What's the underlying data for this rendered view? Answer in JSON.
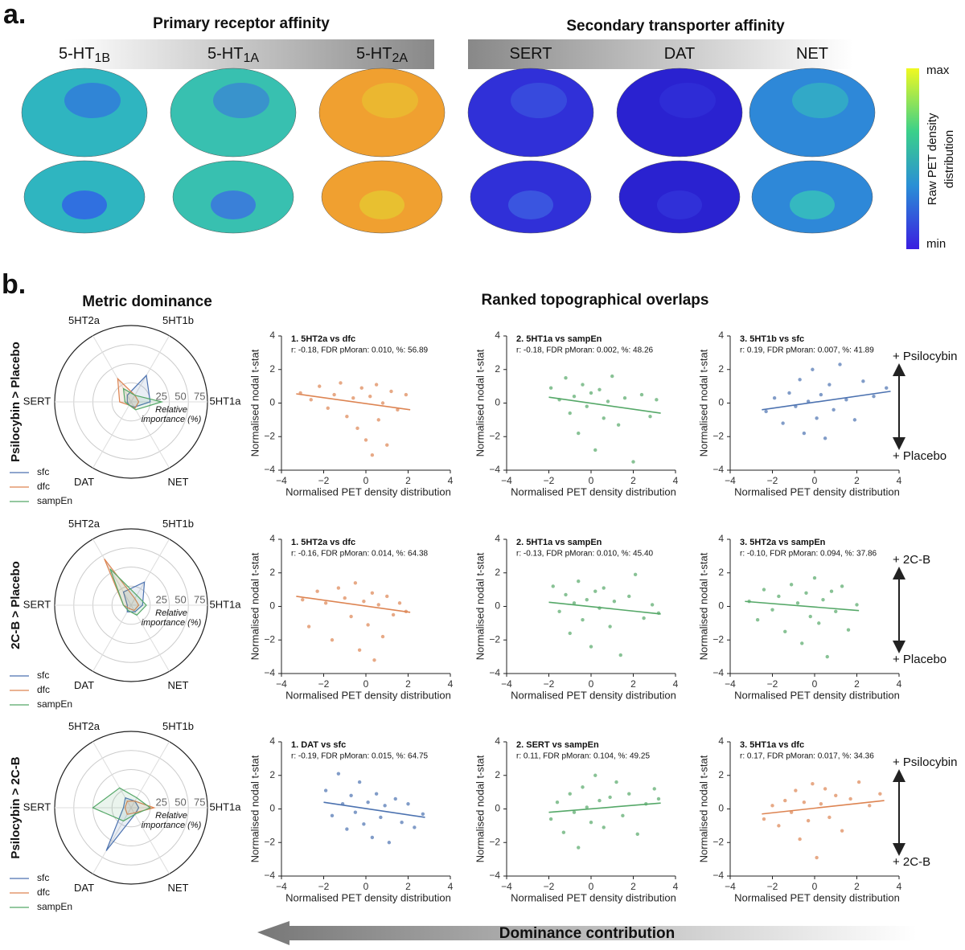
{
  "panel_a": {
    "label": "a.",
    "primary_title": "Primary receptor affinity",
    "secondary_title": "Secondary transporter affinity",
    "receptors": [
      {
        "base": "5-HT",
        "sub": "1B"
      },
      {
        "base": "5-HT",
        "sub": "1A"
      },
      {
        "base": "5-HT",
        "sub": "2A"
      },
      {
        "base": "SERT",
        "sub": ""
      },
      {
        "base": "DAT",
        "sub": ""
      },
      {
        "base": "NET",
        "sub": ""
      }
    ],
    "colorbar": {
      "max": "max",
      "min": "min",
      "label": [
        "Raw PET density",
        "distribution"
      ]
    }
  },
  "panel_b": {
    "label": "b.",
    "left_title": "Metric dominance",
    "right_title": "Ranked topographical overlaps",
    "arrow_label": "Dominance contribution",
    "contrasts": [
      {
        "top": "+ Psilocybin",
        "bottom": "+ Placebo"
      },
      {
        "top": "+ 2C-B",
        "bottom": "+ Placebo"
      },
      {
        "top": "+ Psilocybin",
        "bottom": "+ 2C-B"
      }
    ]
  },
  "chart_data": [
    {
      "type": "radar",
      "title": "Psilocybin > Placebo",
      "categories": [
        "5HT1a",
        "5HT1b",
        "5HT2a",
        "SERT",
        "DAT",
        "NET"
      ],
      "rlim": [
        0,
        100
      ],
      "rticks": [
        25,
        50,
        75
      ],
      "annotation": [
        "Relative",
        "importance (%)"
      ],
      "series": [
        {
          "name": "sfc",
          "color": "#4c72b0",
          "values": [
            25,
            40,
            10,
            5,
            5,
            8
          ]
        },
        {
          "name": "dfc",
          "color": "#dd8452",
          "values": [
            10,
            10,
            35,
            15,
            5,
            10
          ]
        },
        {
          "name": "sampEn",
          "color": "#55a868",
          "values": [
            40,
            10,
            20,
            8,
            5,
            12
          ]
        }
      ]
    },
    {
      "type": "radar",
      "title": "2C-B > Placebo",
      "categories": [
        "5HT1a",
        "5HT1b",
        "5HT2a",
        "SERT",
        "DAT",
        "NET"
      ],
      "rlim": [
        0,
        100
      ],
      "rticks": [
        25,
        50,
        75
      ],
      "annotation": [
        "Relative",
        "importance (%)"
      ],
      "series": [
        {
          "name": "sfc",
          "color": "#4c72b0",
          "values": [
            15,
            35,
            20,
            5,
            10,
            10
          ]
        },
        {
          "name": "dfc",
          "color": "#dd8452",
          "values": [
            10,
            10,
            70,
            10,
            5,
            8
          ]
        },
        {
          "name": "sampEn",
          "color": "#55a868",
          "values": [
            20,
            15,
            55,
            10,
            8,
            15
          ]
        }
      ]
    },
    {
      "type": "radar",
      "title": "Psilocybin > 2C-B",
      "categories": [
        "5HT1a",
        "5HT1b",
        "5HT2a",
        "SERT",
        "DAT",
        "NET"
      ],
      "rlim": [
        0,
        100
      ],
      "rticks": [
        25,
        50,
        75
      ],
      "annotation": [
        "Relative",
        "importance (%)"
      ],
      "series": [
        {
          "name": "sfc",
          "color": "#4c72b0",
          "values": [
            10,
            10,
            15,
            10,
            65,
            10
          ]
        },
        {
          "name": "dfc",
          "color": "#dd8452",
          "values": [
            30,
            10,
            10,
            8,
            10,
            8
          ]
        },
        {
          "name": "sampEn",
          "color": "#55a868",
          "values": [
            25,
            15,
            30,
            50,
            20,
            10
          ]
        }
      ]
    },
    {
      "type": "scatter",
      "title": "1. 5HT2a vs dfc",
      "annotation": "r: -0.18, FDR pMoran: 0.010, %: 56.89",
      "xlabel": "Normalised PET density distribution",
      "ylabel": "Normalised nodal t-stat",
      "color": "#dd8452",
      "xlim": [
        -4,
        4
      ],
      "ylim": [
        -4,
        4
      ],
      "xticks": [
        {
          "value": -4,
          "label": "−4"
        },
        {
          "value": -2,
          "label": "−2"
        },
        0,
        2,
        4
      ],
      "yticks": [
        {
          "value": -4,
          "label": "−4"
        },
        {
          "value": -2,
          "label": "−2"
        },
        0,
        2,
        4
      ],
      "x": [
        -3.1,
        -2.6,
        -2.2,
        -1.8,
        -1.5,
        -1.2,
        -0.9,
        -0.6,
        -0.4,
        -0.2,
        0,
        0.2,
        0.3,
        0.5,
        0.6,
        0.8,
        1,
        1.2,
        1.5,
        1.9
      ],
      "values": [
        0.6,
        0.2,
        1.0,
        -0.3,
        0.5,
        1.2,
        -0.8,
        0.3,
        -1.5,
        0.9,
        -2.2,
        0.4,
        -3.1,
        1.1,
        -1.0,
        0.0,
        -2.5,
        0.7,
        -0.4,
        0.5
      ],
      "fit": {
        "x": [
          -3.3,
          2.1
        ],
        "y": [
          0.55,
          -0.4
        ]
      }
    },
    {
      "type": "scatter",
      "title": "2. 5HT1a vs sampEn",
      "annotation": "r: -0.18, FDR pMoran: 0.002, %: 48.26",
      "xlabel": "Normalised PET density distribution",
      "ylabel": "Normalised nodal t-stat",
      "color": "#55a868",
      "xlim": [
        -4,
        4
      ],
      "ylim": [
        -4,
        4
      ],
      "xticks": [
        {
          "value": -4,
          "label": "−4"
        },
        {
          "value": -2,
          "label": "−2"
        },
        0,
        2,
        4
      ],
      "yticks": [
        {
          "value": -4,
          "label": "−4"
        },
        {
          "value": -2,
          "label": "−2"
        },
        0,
        2,
        4
      ],
      "x": [
        -1.9,
        -1.5,
        -1.2,
        -1,
        -0.8,
        -0.6,
        -0.4,
        -0.2,
        0,
        0.2,
        0.4,
        0.6,
        0.8,
        1,
        1.3,
        1.6,
        2,
        2.4,
        2.8,
        3.1
      ],
      "values": [
        0.9,
        0.2,
        1.5,
        -0.6,
        0.4,
        -1.8,
        1.1,
        -0.2,
        0.6,
        -2.8,
        0.8,
        -0.9,
        0.1,
        1.6,
        -1.3,
        0.3,
        -3.5,
        0.5,
        -0.8,
        0.2
      ],
      "fit": {
        "x": [
          -2,
          3.3
        ],
        "y": [
          0.35,
          -0.6
        ]
      }
    },
    {
      "type": "scatter",
      "title": "3. 5HT1b vs sfc",
      "annotation": "r: 0.19, FDR pMoran: 0.007, %: 41.89",
      "xlabel": "Normalised PET density distribution",
      "ylabel": "Normalised nodal t-stat",
      "color": "#4c72b0",
      "xlim": [
        -4,
        4
      ],
      "ylim": [
        -4,
        4
      ],
      "xticks": [
        {
          "value": -4,
          "label": "−4"
        },
        {
          "value": -2,
          "label": "−2"
        },
        0,
        2,
        4
      ],
      "yticks": [
        {
          "value": -4,
          "label": "−4"
        },
        {
          "value": -2,
          "label": "−2"
        },
        0,
        2,
        4
      ],
      "x": [
        -2.3,
        -1.9,
        -1.5,
        -1.2,
        -0.9,
        -0.7,
        -0.5,
        -0.3,
        -0.1,
        0.1,
        0.3,
        0.5,
        0.7,
        0.9,
        1.2,
        1.5,
        1.9,
        2.3,
        2.8,
        3.4
      ],
      "values": [
        -0.5,
        0.3,
        -1.2,
        0.6,
        -0.2,
        1.4,
        -1.8,
        0.1,
        2.0,
        -0.9,
        0.5,
        -2.1,
        1.1,
        -0.4,
        2.3,
        0.2,
        -1.0,
        1.3,
        0.4,
        0.9
      ],
      "fit": {
        "x": [
          -2.5,
          3.6
        ],
        "y": [
          -0.4,
          0.7
        ]
      }
    },
    {
      "type": "scatter",
      "title": "1. 5HT2a vs dfc",
      "annotation": "r: -0.16, FDR pMoran: 0.014, %: 64.38",
      "xlabel": "Normalised PET density distribution",
      "ylabel": "Normalised nodal t-stat",
      "color": "#dd8452",
      "xlim": [
        -4,
        4
      ],
      "ylim": [
        -4,
        4
      ],
      "xticks": [
        {
          "value": -4,
          "label": "−4"
        },
        {
          "value": -2,
          "label": "−2"
        },
        0,
        2,
        4
      ],
      "yticks": [
        {
          "value": -4,
          "label": "−4"
        },
        {
          "value": -2,
          "label": "−2"
        },
        0,
        2,
        4
      ],
      "x": [
        -3.0,
        -2.7,
        -2.3,
        -1.9,
        -1.6,
        -1.3,
        -1.0,
        -0.7,
        -0.5,
        -0.3,
        -0.1,
        0.1,
        0.3,
        0.4,
        0.6,
        0.8,
        1.0,
        1.3,
        1.6,
        1.9
      ],
      "values": [
        0.4,
        -1.2,
        0.9,
        0.2,
        -2.0,
        1.1,
        0.5,
        -0.6,
        1.4,
        -2.6,
        0.3,
        -1.1,
        0.8,
        -3.2,
        0.1,
        -1.8,
        0.6,
        -0.5,
        0.2,
        -0.3
      ],
      "fit": {
        "x": [
          -3.3,
          2.1
        ],
        "y": [
          0.6,
          -0.35
        ]
      }
    },
    {
      "type": "scatter",
      "title": "2. 5HT1a vs sampEn",
      "annotation": "r: -0.13, FDR pMoran: 0.010, %: 45.40",
      "xlabel": "Normalised PET density distribution",
      "ylabel": "Normalised nodal t-stat",
      "color": "#55a868",
      "xlim": [
        -4,
        4
      ],
      "ylim": [
        -4,
        4
      ],
      "xticks": [
        {
          "value": -4,
          "label": "−4"
        },
        {
          "value": -2,
          "label": "−2"
        },
        0,
        2,
        4
      ],
      "yticks": [
        {
          "value": -4,
          "label": "−4"
        },
        {
          "value": -2,
          "label": "−2"
        },
        0,
        2,
        4
      ],
      "x": [
        -1.8,
        -1.5,
        -1.2,
        -1.0,
        -0.8,
        -0.6,
        -0.4,
        -0.2,
        0,
        0.2,
        0.4,
        0.6,
        0.9,
        1.1,
        1.4,
        1.8,
        2.1,
        2.5,
        2.9,
        3.2
      ],
      "values": [
        1.2,
        -0.3,
        0.7,
        -1.6,
        0.2,
        1.5,
        -0.8,
        0.4,
        -2.4,
        0.9,
        -0.1,
        1.1,
        -1.2,
        0.3,
        -2.9,
        0.6,
        1.9,
        -0.7,
        0.1,
        -0.4
      ],
      "fit": {
        "x": [
          -2,
          3.3
        ],
        "y": [
          0.25,
          -0.45
        ]
      }
    },
    {
      "type": "scatter",
      "title": "3. 5HT2a vs sampEn",
      "annotation": "r: -0.10, FDR pMoran: 0.094, %: 37.86",
      "xlabel": "Normalised PET density distribution",
      "ylabel": "Normalised nodal t-stat",
      "color": "#55a868",
      "xlim": [
        -4,
        4
      ],
      "ylim": [
        -4,
        4
      ],
      "xticks": [
        {
          "value": -4,
          "label": "−4"
        },
        {
          "value": -2,
          "label": "−2"
        },
        0,
        2,
        4
      ],
      "yticks": [
        {
          "value": -4,
          "label": "−4"
        },
        {
          "value": -2,
          "label": "−2"
        },
        0,
        2,
        4
      ],
      "x": [
        -3.1,
        -2.7,
        -2.4,
        -2.0,
        -1.7,
        -1.4,
        -1.1,
        -0.8,
        -0.6,
        -0.4,
        -0.2,
        0,
        0.2,
        0.4,
        0.6,
        0.8,
        1.0,
        1.3,
        1.6,
        2.0
      ],
      "values": [
        0.3,
        -0.8,
        1.0,
        -0.2,
        0.6,
        -1.5,
        1.3,
        0.2,
        -2.2,
        0.8,
        -0.6,
        1.7,
        -1.0,
        0.4,
        -3.0,
        0.9,
        -0.3,
        1.2,
        -1.4,
        0.1
      ],
      "fit": {
        "x": [
          -3.3,
          2.1
        ],
        "y": [
          0.3,
          -0.25
        ]
      }
    },
    {
      "type": "scatter",
      "title": "1. DAT vs sfc",
      "annotation": "r: -0.19, FDR pMoran: 0.015, %: 64.75",
      "xlabel": "Normalised PET density distribution",
      "ylabel": "Normalised nodal t-stat",
      "color": "#4c72b0",
      "xlim": [
        -4,
        4
      ],
      "ylim": [
        -4,
        4
      ],
      "xticks": [
        {
          "value": -4,
          "label": "−4"
        },
        {
          "value": -2,
          "label": "−2"
        },
        0,
        2,
        4
      ],
      "yticks": [
        {
          "value": -4,
          "label": "−4"
        },
        {
          "value": -2,
          "label": "−2"
        },
        0,
        2,
        4
      ],
      "x": [
        -1.9,
        -1.6,
        -1.3,
        -1.1,
        -0.9,
        -0.7,
        -0.5,
        -0.3,
        -0.1,
        0.1,
        0.3,
        0.5,
        0.7,
        0.9,
        1.1,
        1.4,
        1.7,
        2.0,
        2.3,
        2.7
      ],
      "values": [
        1.1,
        -0.4,
        2.1,
        0.3,
        -1.2,
        0.8,
        -0.2,
        1.6,
        -0.9,
        0.4,
        -1.7,
        0.9,
        -0.5,
        0.2,
        -2.0,
        0.6,
        -0.8,
        0.3,
        -1.1,
        -0.3
      ],
      "fit": {
        "x": [
          -2,
          2.8
        ],
        "y": [
          0.4,
          -0.5
        ]
      }
    },
    {
      "type": "scatter",
      "title": "2. SERT vs sampEn",
      "annotation": "r: 0.11, FDR pMoran: 0.104, %: 49.25",
      "xlabel": "Normalised PET density distribution",
      "ylabel": "Normalised nodal t-stat",
      "color": "#55a868",
      "xlim": [
        -4,
        4
      ],
      "ylim": [
        -4,
        4
      ],
      "xticks": [
        {
          "value": -4,
          "label": "−4"
        },
        {
          "value": -2,
          "label": "−2"
        },
        0,
        2,
        4
      ],
      "yticks": [
        {
          "value": -4,
          "label": "−4"
        },
        {
          "value": -2,
          "label": "−2"
        },
        0,
        2,
        4
      ],
      "x": [
        -1.9,
        -1.6,
        -1.3,
        -1.0,
        -0.8,
        -0.6,
        -0.4,
        -0.2,
        0,
        0.2,
        0.4,
        0.6,
        0.9,
        1.2,
        1.5,
        1.8,
        2.2,
        2.6,
        3.0,
        3.2
      ],
      "values": [
        -0.6,
        0.4,
        -1.4,
        0.9,
        -0.2,
        -2.3,
        1.3,
        0.1,
        -0.8,
        2.0,
        0.5,
        -1.1,
        0.7,
        1.6,
        -0.4,
        0.9,
        -1.5,
        0.3,
        1.2,
        0.6
      ],
      "fit": {
        "x": [
          -2,
          3.3
        ],
        "y": [
          -0.2,
          0.35
        ]
      }
    },
    {
      "type": "scatter",
      "title": "3. 5HT1a vs dfc",
      "annotation": "r: 0.17, FDR pMoran: 0.017, %: 34.36",
      "xlabel": "Normalised PET density distribution",
      "ylabel": "Normalised nodal t-stat",
      "color": "#dd8452",
      "xlim": [
        -4,
        4
      ],
      "ylim": [
        -4,
        4
      ],
      "xticks": [
        {
          "value": -4,
          "label": "−4"
        },
        {
          "value": -2,
          "label": "−2"
        },
        0,
        2,
        4
      ],
      "yticks": [
        {
          "value": -4,
          "label": "−4"
        },
        {
          "value": -2,
          "label": "−2"
        },
        0,
        2,
        4
      ],
      "x": [
        -2.4,
        -2.0,
        -1.7,
        -1.4,
        -1.1,
        -0.9,
        -0.7,
        -0.5,
        -0.3,
        -0.1,
        0.1,
        0.3,
        0.5,
        0.7,
        1.0,
        1.3,
        1.7,
        2.1,
        2.6,
        3.1
      ],
      "values": [
        -0.6,
        0.2,
        -1.0,
        0.5,
        -0.2,
        1.1,
        -1.8,
        0.4,
        -0.7,
        1.5,
        -2.9,
        0.3,
        1.2,
        -0.5,
        0.8,
        -1.3,
        0.6,
        1.6,
        0.2,
        0.9
      ],
      "fit": {
        "x": [
          -2.5,
          3.3
        ],
        "y": [
          -0.3,
          0.5
        ]
      }
    }
  ]
}
